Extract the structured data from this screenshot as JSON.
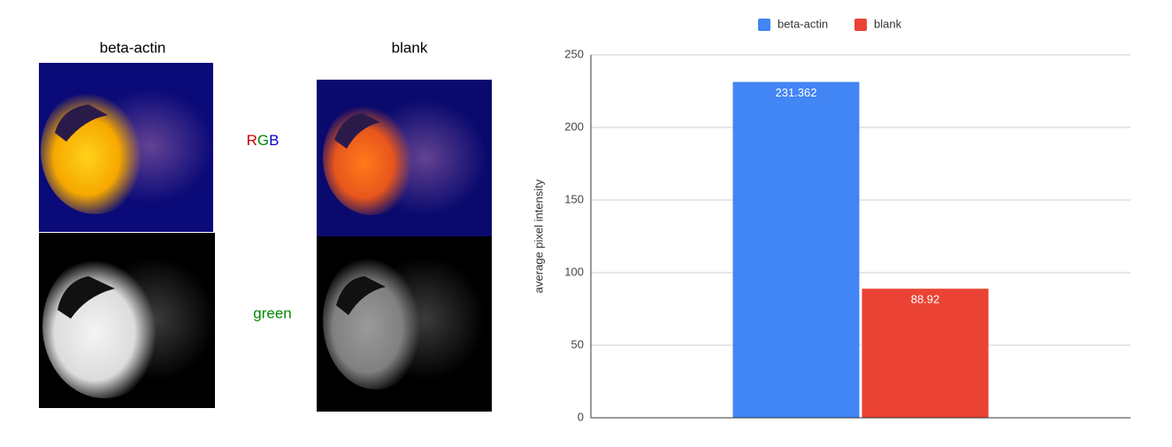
{
  "figure": {
    "columns": [
      "beta-actin",
      "blank"
    ],
    "rgb_label": [
      "R",
      "G",
      "B"
    ],
    "green_label": "green"
  },
  "chart_data": {
    "type": "bar",
    "categories": [
      null
    ],
    "series": [
      {
        "name": "beta-actin",
        "color": "#4285f4",
        "values": [
          231.362
        ]
      },
      {
        "name": "blank",
        "color": "#ea4335",
        "values": [
          88.92
        ]
      }
    ],
    "y_label": "average pixel intensity",
    "ylim": [
      0,
      250
    ],
    "yticks": [
      0,
      50,
      100,
      150,
      200,
      250
    ],
    "grid": true,
    "legend": "top"
  }
}
